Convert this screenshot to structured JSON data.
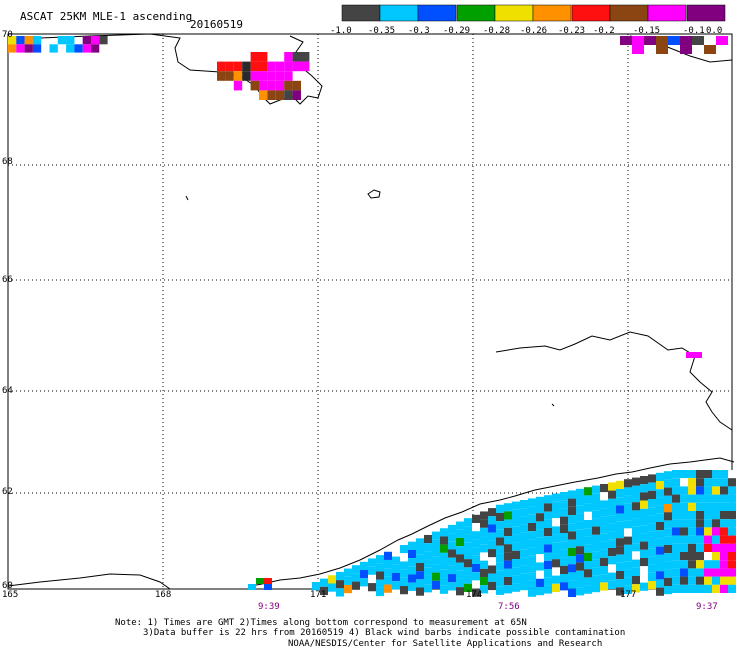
{
  "title": "ASCAT 25KM MLE-1 ascending",
  "date": "20160519",
  "colorbar": {
    "colors": [
      "#444444",
      "#00c8ff",
      "#0050ff",
      "#00a000",
      "#f0e000",
      "#ff9000",
      "#ff1010",
      "#8b4513",
      "#ff00ff",
      "#800080"
    ],
    "labels": [
      "-1.0",
      "-0.35",
      "-0.3",
      "-0.29",
      "-0.28",
      "-0.26",
      "-0.23",
      "-0.2",
      "-0.15",
      "-0.1",
      "0.0"
    ]
  },
  "lat_labels": [
    "70",
    "68",
    "66",
    "64",
    "62",
    "60"
  ],
  "lon_labels": [
    "165",
    "168",
    "171",
    "174",
    "177"
  ],
  "time_labels": [
    "9:39",
    "7:56",
    "9:37"
  ],
  "notes": [
    "Note: 1) Times are GMT 2)Times along bottom correspond to measurement at 65N",
    "3)Data buffer is 22 hrs from 20160519 4) Black wind barbs indicate possible contamination",
    "NOAA/NESDIS/Center for Satellite Applications and Research"
  ]
}
